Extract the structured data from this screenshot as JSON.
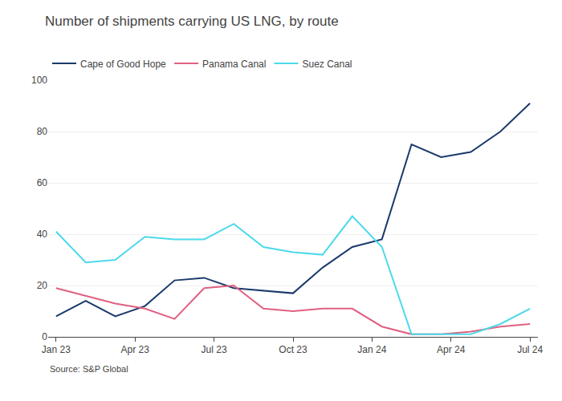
{
  "chart_data": {
    "type": "line",
    "title": "Number of shipments carrying US LNG, by route",
    "annotations": [
      "Source: S&P Global"
    ],
    "x": [
      0,
      1.125,
      2.25,
      3.375,
      4.5,
      5.625,
      6.75,
      7.875,
      9,
      10.125,
      11.25,
      12.375,
      13.5,
      14.625,
      15.75,
      16.875,
      18
    ],
    "series": [
      {
        "name": "Cape of Good Hope",
        "color": "#1a3a6b",
        "values": [
          8,
          14,
          8,
          12,
          22,
          23,
          19,
          18,
          17,
          27,
          35,
          38,
          75,
          70,
          72,
          80,
          91
        ]
      },
      {
        "name": "Panama Canal",
        "color": "#e06080",
        "values": [
          19,
          16,
          13,
          11,
          7,
          19,
          20,
          11,
          10,
          11,
          11,
          4,
          1,
          1,
          2,
          4,
          5
        ]
      },
      {
        "name": "Suez Canal",
        "color": "#4dd9ec",
        "values": [
          41,
          29,
          30,
          39,
          38,
          38,
          44,
          35,
          33,
          32,
          47,
          35,
          1,
          1,
          1,
          5,
          11
        ]
      }
    ],
    "xlim": [
      -0.3,
      18.3
    ],
    "xticks": [
      {
        "value": 0,
        "label": "Jan 23"
      },
      {
        "value": 3,
        "label": "Apr 23"
      },
      {
        "value": 6,
        "label": "Jul 23"
      },
      {
        "value": 9,
        "label": "Oct 23"
      },
      {
        "value": 12,
        "label": "Jan 24"
      },
      {
        "value": 15,
        "label": "Apr 24"
      },
      {
        "value": 18,
        "label": "Jul 24"
      }
    ],
    "ylim": [
      0,
      100
    ],
    "yticks": [
      0,
      20,
      40,
      60,
      80,
      100
    ],
    "grid": true,
    "legend": "top left"
  }
}
